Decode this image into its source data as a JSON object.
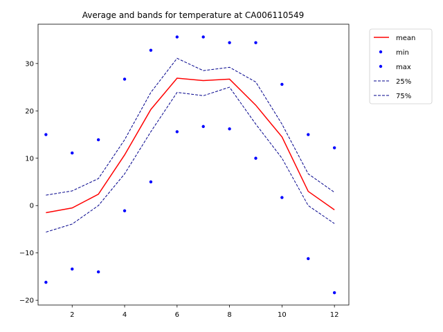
{
  "chart_data": {
    "type": "line",
    "title": "Average and bands for temperature at CA006110549",
    "xlabel": "",
    "ylabel": "",
    "xlim": [
      0.7,
      12.55
    ],
    "ylim": [
      -21,
      38.3
    ],
    "xticks": [
      2,
      4,
      6,
      8,
      10,
      12
    ],
    "yticks": [
      -20,
      -10,
      0,
      10,
      20,
      30
    ],
    "grid": false,
    "legend_position": "outside-top-right",
    "x": [
      1,
      2,
      3,
      4,
      5,
      6,
      7,
      8,
      9,
      10,
      11,
      12
    ],
    "series": [
      {
        "name": "mean",
        "style": "line",
        "color": "#ff0000",
        "values": [
          -1.5,
          -0.5,
          2.4,
          10.7,
          20.3,
          26.9,
          26.4,
          26.7,
          21.2,
          14.5,
          3.0,
          -0.9
        ]
      },
      {
        "name": "min",
        "style": "points",
        "color": "#0000ff",
        "values": [
          -16.2,
          -13.4,
          -14.0,
          -1.1,
          5.0,
          15.6,
          16.7,
          16.2,
          10.0,
          1.7,
          -11.2,
          -18.4
        ]
      },
      {
        "name": "max",
        "style": "points",
        "color": "#0000ff",
        "values": [
          15.0,
          11.1,
          13.9,
          26.7,
          32.8,
          35.6,
          35.6,
          34.4,
          34.4,
          25.6,
          15.0,
          12.2
        ]
      },
      {
        "name": "25%",
        "style": "dashed",
        "color": "#00008b",
        "values": [
          -5.6,
          -3.9,
          0.0,
          6.7,
          15.6,
          23.9,
          23.2,
          25.0,
          17.2,
          10.0,
          0.0,
          -3.8
        ]
      },
      {
        "name": "75%",
        "style": "dashed",
        "color": "#00008b",
        "values": [
          2.2,
          3.1,
          5.7,
          13.9,
          23.9,
          31.1,
          28.5,
          29.2,
          26.1,
          17.2,
          6.7,
          2.8
        ]
      }
    ]
  }
}
